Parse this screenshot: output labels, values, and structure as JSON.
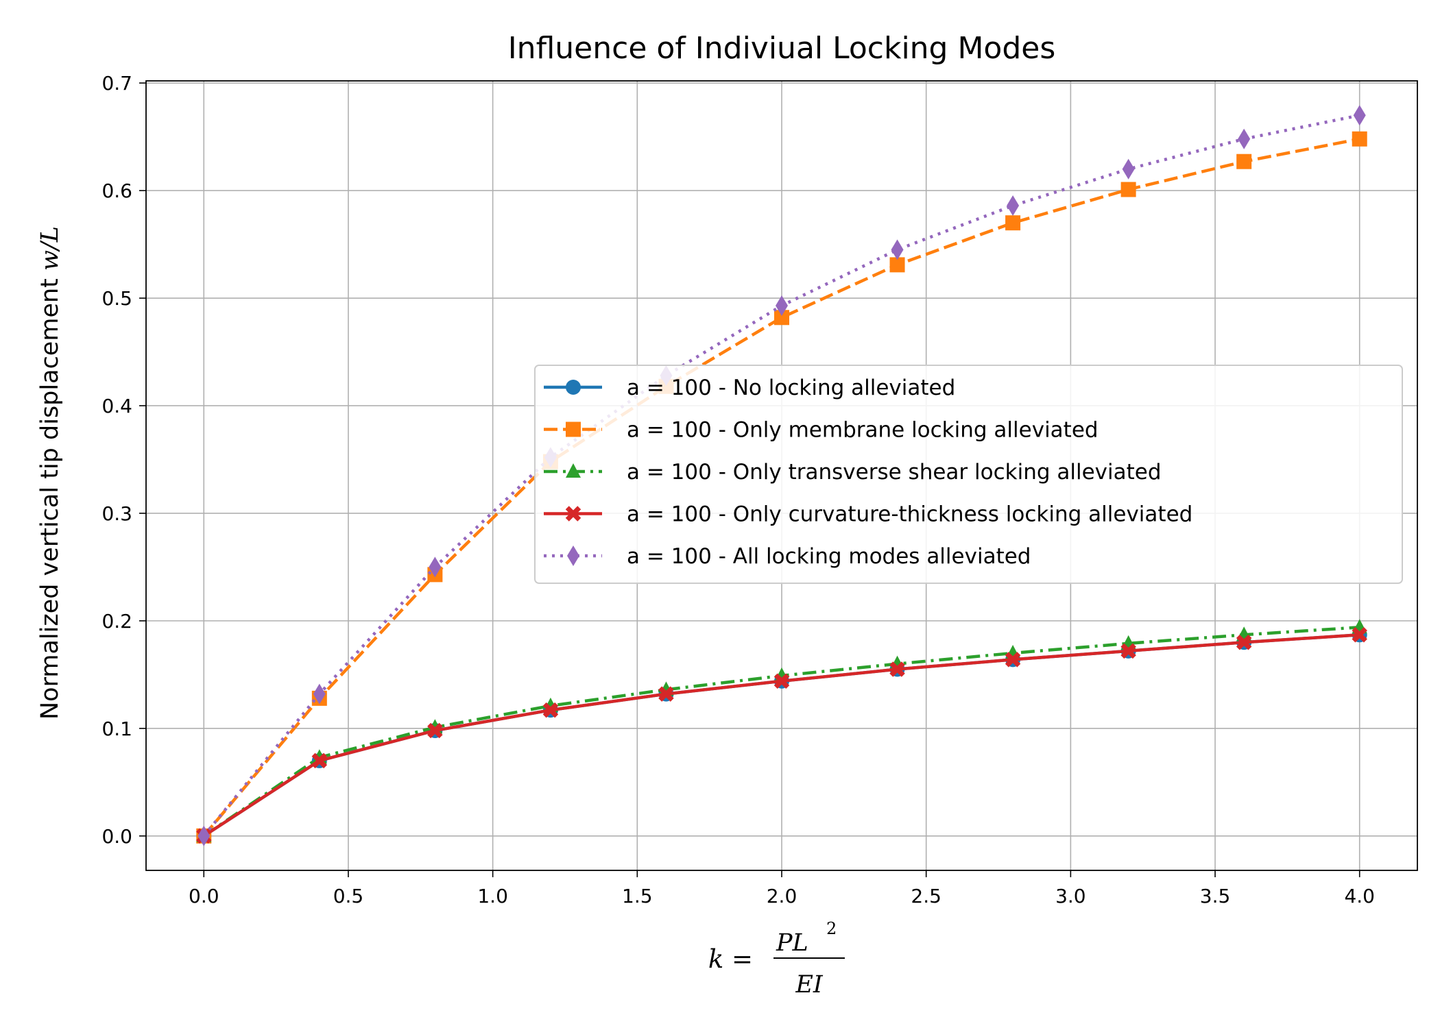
{
  "chart_data": {
    "type": "line",
    "title": "Influence of Indiviual Locking Modes",
    "ylabel": "Normalized vertical tip displacement",
    "ylabel_math": "w/L",
    "xlabel_prefix": "k =",
    "xlabel_numerator": "PL",
    "xlabel_exponent": "2",
    "xlabel_denominator": "EI",
    "xlim": [
      -0.2,
      4.2
    ],
    "ylim": [
      -0.032,
      0.702
    ],
    "xticks": [
      0.0,
      0.5,
      1.0,
      1.5,
      2.0,
      2.5,
      3.0,
      3.5,
      4.0
    ],
    "xtick_labels": [
      "0.0",
      "0.5",
      "1.0",
      "1.5",
      "2.0",
      "2.5",
      "3.0",
      "3.5",
      "4.0"
    ],
    "yticks": [
      0.0,
      0.1,
      0.2,
      0.3,
      0.4,
      0.5,
      0.6,
      0.7
    ],
    "ytick_labels": [
      "0.0",
      "0.1",
      "0.2",
      "0.3",
      "0.4",
      "0.5",
      "0.6",
      "0.7"
    ],
    "grid": true,
    "legend_position": "center-right",
    "x": [
      0.0,
      0.4,
      0.8,
      1.2,
      1.6,
      2.0,
      2.4,
      2.8,
      3.2,
      3.6,
      4.0
    ],
    "series": [
      {
        "name": "a = 100 - No locking alleviated",
        "color": "#1f77b4",
        "marker": "circle",
        "linestyle": "solid",
        "values": [
          0.0,
          0.07,
          0.098,
          0.117,
          0.132,
          0.144,
          0.155,
          0.164,
          0.172,
          0.18,
          0.187
        ]
      },
      {
        "name": "a = 100 - Only membrane locking alleviated",
        "color": "#ff7f0e",
        "marker": "square",
        "linestyle": "dashed",
        "values": [
          0.0,
          0.128,
          0.243,
          0.348,
          0.418,
          0.482,
          0.531,
          0.57,
          0.601,
          0.627,
          0.648
        ]
      },
      {
        "name": "a = 100 - Only transverse shear locking alleviated",
        "color": "#2ca02c",
        "marker": "triangle",
        "linestyle": "dashdot",
        "values": [
          0.0,
          0.073,
          0.101,
          0.121,
          0.136,
          0.149,
          0.16,
          0.17,
          0.179,
          0.187,
          0.194
        ]
      },
      {
        "name": "a = 100 - Only curvature-thickness locking alleviated",
        "color": "#d62728",
        "marker": "x",
        "linestyle": "solid",
        "values": [
          0.0,
          0.07,
          0.098,
          0.117,
          0.132,
          0.144,
          0.155,
          0.164,
          0.172,
          0.18,
          0.187
        ]
      },
      {
        "name": "a = 100 - All locking modes alleviated",
        "color": "#9467bd",
        "marker": "diamond",
        "linestyle": "dotted",
        "values": [
          0.0,
          0.132,
          0.25,
          0.352,
          0.428,
          0.493,
          0.545,
          0.586,
          0.62,
          0.648,
          0.67
        ]
      }
    ]
  }
}
